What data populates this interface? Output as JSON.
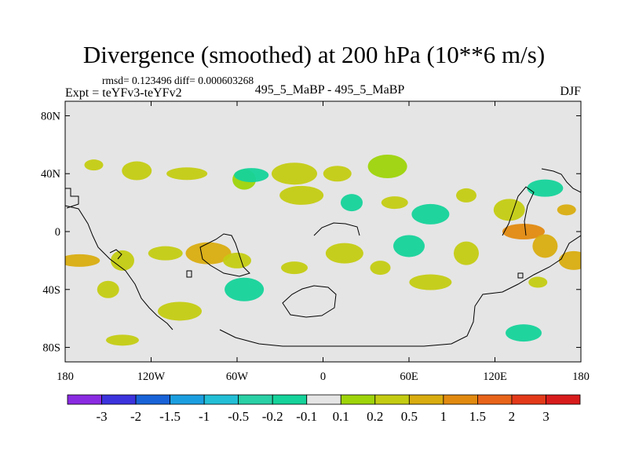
{
  "chart_data": {
    "type": "heatmap",
    "title": "Divergence (smoothed) at 200 hPa (10**6 m/s)",
    "stats_text": "rmsd= 0.123496 diff= 0.000603268",
    "experiment_label": "Expt = teYFv3-teYFv2",
    "case_label": "495_5_MaBP - 495_5_MaBP",
    "season": "DJF",
    "x_axis": {
      "range": [
        -180,
        180
      ],
      "ticks": [
        -180,
        -120,
        -60,
        0,
        60,
        120,
        180
      ],
      "tick_labels": [
        "180",
        "120W",
        "60W",
        "0",
        "60E",
        "120E",
        "180"
      ]
    },
    "y_axis": {
      "range": [
        -90,
        90
      ],
      "ticks": [
        80,
        40,
        0,
        -40,
        -80
      ],
      "tick_labels": [
        "80N",
        "40N",
        "0",
        "40S",
        "80S"
      ]
    },
    "colorbar": {
      "labels": [
        "-3",
        "-2",
        "-1.5",
        "-1",
        "-0.5",
        "-0.2",
        "-0.1",
        "0.1",
        "0.2",
        "0.5",
        "1",
        "1.5",
        "2",
        "3"
      ],
      "colors": [
        "#8a2be2",
        "#3c33dd",
        "#1863d8",
        "#1b9ee0",
        "#22bfd6",
        "#2ad0a6",
        "#15d39a",
        "#e5e5e5",
        "#9ed40a",
        "#c4cc12",
        "#d9ad10",
        "#e28a10",
        "#e8641a",
        "#e33a1a",
        "#d81c1c"
      ]
    },
    "fill_color_neutral": "#e5e5e5",
    "features": [
      {
        "lon": -160,
        "lat": 46,
        "value": 0.2
      },
      {
        "lon": -130,
        "lat": 42,
        "value": 0.2
      },
      {
        "lon": -95,
        "lat": 40,
        "value": 0.2
      },
      {
        "lon": -55,
        "lat": 36,
        "value": 0.15
      },
      {
        "lon": -50,
        "lat": 39,
        "value": -0.15
      },
      {
        "lon": -20,
        "lat": 40,
        "value": 0.2
      },
      {
        "lon": 10,
        "lat": 40,
        "value": 0.2
      },
      {
        "lon": 45,
        "lat": 45,
        "value": 0.15
      },
      {
        "lon": 20,
        "lat": 20,
        "value": -0.15
      },
      {
        "lon": -10,
        "lat": 22,
        "value": -0.1
      },
      {
        "lon": -15,
        "lat": 25,
        "value": 0.2
      },
      {
        "lon": 50,
        "lat": 20,
        "value": 0.2
      },
      {
        "lon": 75,
        "lat": 12,
        "value": -0.15
      },
      {
        "lon": 100,
        "lat": 25,
        "value": 0.2
      },
      {
        "lon": 130,
        "lat": 15,
        "value": 0.2
      },
      {
        "lon": 140,
        "lat": 0,
        "value": 1.0
      },
      {
        "lon": 155,
        "lat": -10,
        "value": 0.5
      },
      {
        "lon": 155,
        "lat": 30,
        "value": -0.15
      },
      {
        "lon": 170,
        "lat": 15,
        "value": 0.5
      },
      {
        "lon": 175,
        "lat": -20,
        "value": 0.5
      },
      {
        "lon": -170,
        "lat": -20,
        "value": 0.5
      },
      {
        "lon": -140,
        "lat": -20,
        "value": 0.3
      },
      {
        "lon": -110,
        "lat": -15,
        "value": 0.3
      },
      {
        "lon": -80,
        "lat": -15,
        "value": 0.5
      },
      {
        "lon": -60,
        "lat": -20,
        "value": 0.3
      },
      {
        "lon": -55,
        "lat": -40,
        "value": -0.15
      },
      {
        "lon": -150,
        "lat": -40,
        "value": 0.3
      },
      {
        "lon": -140,
        "lat": -75,
        "value": 0.2
      },
      {
        "lon": -100,
        "lat": -55,
        "value": 0.2
      },
      {
        "lon": -20,
        "lat": -25,
        "value": 0.2
      },
      {
        "lon": 15,
        "lat": -15,
        "value": 0.2
      },
      {
        "lon": 40,
        "lat": -25,
        "value": 0.3
      },
      {
        "lon": 60,
        "lat": -10,
        "value": -0.15
      },
      {
        "lon": 75,
        "lat": -35,
        "value": 0.2
      },
      {
        "lon": 100,
        "lat": -15,
        "value": 0.2
      },
      {
        "lon": 140,
        "lat": -70,
        "value": -0.15
      },
      {
        "lon": 150,
        "lat": -35,
        "value": 0.2
      }
    ]
  }
}
